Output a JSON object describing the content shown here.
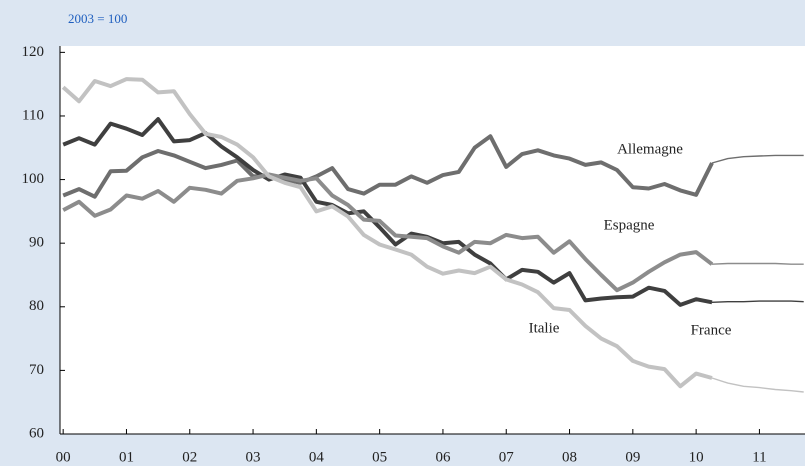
{
  "chart_data": {
    "type": "line",
    "subtitle": "2003 = 100",
    "x": [
      0,
      0.25,
      0.5,
      0.75,
      1,
      1.25,
      1.5,
      1.75,
      2,
      2.25,
      2.5,
      2.75,
      3,
      3.25,
      3.5,
      3.75,
      4,
      4.25,
      4.5,
      4.75,
      5,
      5.25,
      5.5,
      5.75,
      6,
      6.25,
      6.5,
      6.75,
      7,
      7.25,
      7.5,
      7.75,
      8,
      8.25,
      8.5,
      8.75,
      9,
      9.25,
      9.5,
      9.75,
      10,
      10.25,
      10.5,
      10.75,
      11,
      11.25,
      11.5,
      11.7
    ],
    "xlim": [
      -0.05,
      11.72
    ],
    "xticks": [
      {
        "value": 0,
        "label": "00"
      },
      {
        "value": 1,
        "label": "01"
      },
      {
        "value": 2,
        "label": "02"
      },
      {
        "value": 3,
        "label": "03"
      },
      {
        "value": 4,
        "label": "04"
      },
      {
        "value": 5,
        "label": "05"
      },
      {
        "value": 6,
        "label": "06"
      },
      {
        "value": 7,
        "label": "07"
      },
      {
        "value": 8,
        "label": "08"
      },
      {
        "value": 9,
        "label": "09"
      },
      {
        "value": 10,
        "label": "10"
      },
      {
        "value": 11,
        "label": "11"
      }
    ],
    "ylim": [
      60,
      121
    ],
    "yticks": [
      60,
      70,
      80,
      90,
      100,
      110,
      120
    ],
    "series": [
      {
        "name": "Allemagne",
        "color": "#6e6e6e",
        "values": [
          97.5,
          98.5,
          97.3,
          101.3,
          101.4,
          103.5,
          104.5,
          103.8,
          102.8,
          101.8,
          102.3,
          103.0,
          100.5,
          100.7,
          100,
          99.5,
          100.5,
          101.8,
          98.5,
          97.8,
          99.2,
          99.2,
          100.5,
          99.5,
          100.7,
          101.2,
          105,
          106.8,
          102,
          104,
          104.6,
          103.8,
          103.3,
          102.3,
          102.7,
          101.5,
          98.8,
          98.6,
          99.3,
          98.3,
          97.6,
          102.6,
          null,
          null,
          null,
          null,
          null,
          null
        ],
        "forecast": [
          null,
          null,
          null,
          null,
          null,
          null,
          null,
          null,
          null,
          null,
          null,
          null,
          null,
          null,
          null,
          null,
          null,
          null,
          null,
          null,
          null,
          null,
          null,
          null,
          null,
          null,
          null,
          null,
          null,
          null,
          null,
          null,
          null,
          null,
          null,
          null,
          null,
          null,
          null,
          null,
          null,
          102.6,
          103.3,
          103.6,
          103.7,
          103.8,
          103.8,
          103.8
        ]
      },
      {
        "name": "France",
        "color": "#3f3f3f",
        "values": [
          105.5,
          106.5,
          105.5,
          108.8,
          108,
          107,
          109.5,
          106,
          106.2,
          107.3,
          105.2,
          103.5,
          101.5,
          100,
          100.8,
          100.3,
          96.5,
          96,
          94.7,
          95,
          92.5,
          89.8,
          91.5,
          91,
          90,
          90.2,
          88.2,
          86.8,
          84.3,
          85.8,
          85.5,
          83.8,
          85.3,
          81,
          81.3,
          81.5,
          81.6,
          83,
          82.5,
          80.3,
          81.2,
          80.7,
          null,
          null,
          null,
          null,
          null,
          null
        ],
        "forecast": [
          null,
          null,
          null,
          null,
          null,
          null,
          null,
          null,
          null,
          null,
          null,
          null,
          null,
          null,
          null,
          null,
          null,
          null,
          null,
          null,
          null,
          null,
          null,
          null,
          null,
          null,
          null,
          null,
          null,
          null,
          null,
          null,
          null,
          null,
          null,
          null,
          null,
          null,
          null,
          null,
          null,
          80.7,
          80.8,
          80.8,
          80.9,
          80.9,
          80.9,
          80.8
        ]
      },
      {
        "name": "Espagne",
        "color": "#8c8c8c",
        "values": [
          95.2,
          96.5,
          94.3,
          95.3,
          97.5,
          97,
          98.2,
          96.5,
          98.7,
          98.4,
          97.8,
          99.8,
          100.2,
          100.8,
          100.3,
          99.8,
          100.2,
          97.5,
          96,
          93.7,
          93.5,
          91.2,
          91,
          90.8,
          89.5,
          88.5,
          90.2,
          90,
          91.3,
          90.8,
          91,
          88.5,
          90.3,
          87.5,
          85,
          82.6,
          83.8,
          85.5,
          87,
          88.2,
          88.6,
          86.7,
          null,
          null,
          null,
          null,
          null,
          null
        ],
        "forecast": [
          null,
          null,
          null,
          null,
          null,
          null,
          null,
          null,
          null,
          null,
          null,
          null,
          null,
          null,
          null,
          null,
          null,
          null,
          null,
          null,
          null,
          null,
          null,
          null,
          null,
          null,
          null,
          null,
          null,
          null,
          null,
          null,
          null,
          null,
          null,
          null,
          null,
          null,
          null,
          null,
          null,
          86.7,
          86.8,
          86.8,
          86.8,
          86.8,
          86.7,
          86.7
        ]
      },
      {
        "name": "Italie",
        "color": "#c2c2c2",
        "values": [
          114.5,
          112.3,
          115.5,
          114.7,
          115.8,
          115.7,
          113.7,
          113.9,
          110.3,
          107.2,
          106.7,
          105.5,
          103.5,
          100.5,
          99.5,
          98.8,
          95,
          95.8,
          94.2,
          91.3,
          89.8,
          89,
          88.2,
          86.3,
          85.2,
          85.7,
          85.3,
          86.3,
          84.3,
          83.5,
          82.3,
          79.8,
          79.5,
          77,
          75,
          73.8,
          71.5,
          70.6,
          70.2,
          67.5,
          69.5,
          68.8,
          null,
          null,
          null,
          null,
          null,
          null
        ],
        "forecast": [
          null,
          null,
          null,
          null,
          null,
          null,
          null,
          null,
          null,
          null,
          null,
          null,
          null,
          null,
          null,
          null,
          null,
          null,
          null,
          null,
          null,
          null,
          null,
          null,
          null,
          null,
          null,
          null,
          null,
          null,
          null,
          null,
          null,
          null,
          null,
          null,
          null,
          null,
          null,
          null,
          null,
          68.8,
          68,
          67.5,
          67.3,
          67,
          66.8,
          66.6
        ]
      }
    ]
  }
}
